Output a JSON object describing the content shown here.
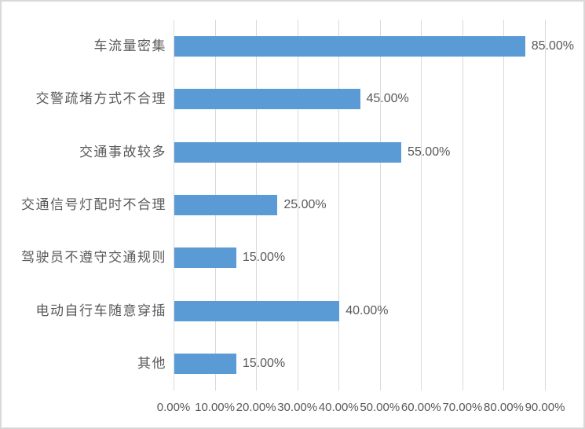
{
  "chart_data": {
    "type": "bar",
    "orientation": "horizontal",
    "title": "",
    "xlabel": "",
    "ylabel": "",
    "categories": [
      "车流量密集",
      "交警疏堵方式不合理",
      "交通事故较多",
      "交通信号灯配时不合理",
      "驾驶员不遵守交通规则",
      "电动自行车随意穿插",
      "其他"
    ],
    "values": [
      85,
      45,
      55,
      25,
      15,
      40,
      15
    ],
    "data_labels": [
      "85.00%",
      "45.00%",
      "55.00%",
      "25.00%",
      "15.00%",
      "40.00%",
      "15.00%"
    ],
    "x_tick_labels": [
      "0.00%",
      "10.00%",
      "20.00%",
      "30.00%",
      "40.00%",
      "50.00%",
      "60.00%",
      "70.00%",
      "80.00%",
      "90.00%"
    ],
    "xlim": [
      0,
      90
    ],
    "x_tick_step": 10,
    "grid": "vertical",
    "legend": "none",
    "colors": {
      "bar": "#5b9bd5",
      "gridline": "#d9d9d9",
      "text": "#595959",
      "chart_border": "#d9d9d9",
      "background": "#ffffff"
    }
  }
}
